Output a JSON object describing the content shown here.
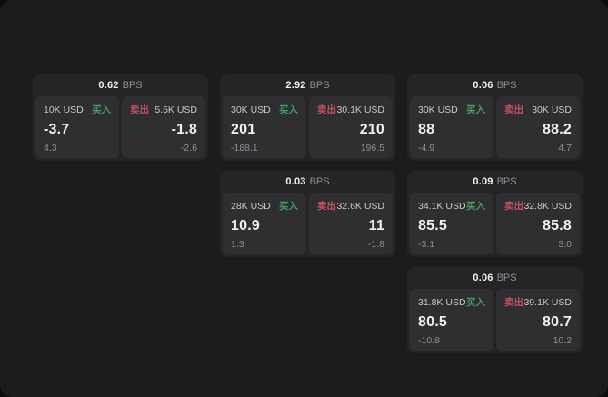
{
  "colors": {
    "page_bg": "#0e0e10",
    "panel_bg": "#1c1c1e",
    "card_bg": "#252527",
    "subpanel_bg": "#2f2f31",
    "buy_green": "#4a9a62",
    "sell_red": "#c44f63",
    "text_strong": "#f2f2f3",
    "text_muted": "#909095"
  },
  "labels": {
    "bps_unit": "BPS",
    "buy": "买入",
    "sell": "卖出"
  },
  "cards": [
    {
      "row": 1,
      "col": 1,
      "bps": "0.62",
      "buy": {
        "amount": "10K USD",
        "value": "-3.7",
        "delta": "4.3"
      },
      "sell": {
        "amount": "5.5K USD",
        "value": "-1.8",
        "delta": "-2.6"
      }
    },
    {
      "row": 1,
      "col": 2,
      "bps": "2.92",
      "buy": {
        "amount": "30K USD",
        "value": "201",
        "delta": "-188.1"
      },
      "sell": {
        "amount": "30.1K USD",
        "value": "210",
        "delta": "196.5"
      }
    },
    {
      "row": 1,
      "col": 3,
      "bps": "0.06",
      "buy": {
        "amount": "30K USD",
        "value": "88",
        "delta": "-4.9"
      },
      "sell": {
        "amount": "30K USD",
        "value": "88.2",
        "delta": "4.7"
      }
    },
    {
      "row": 2,
      "col": 2,
      "bps": "0.03",
      "buy": {
        "amount": "28K USD",
        "value": "10.9",
        "delta": "1.3"
      },
      "sell": {
        "amount": "32.6K USD",
        "value": "11",
        "delta": "-1.8"
      }
    },
    {
      "row": 2,
      "col": 3,
      "bps": "0.09",
      "buy": {
        "amount": "34.1K USD",
        "value": "85.5",
        "delta": "-3.1"
      },
      "sell": {
        "amount": "32.8K USD",
        "value": "85.8",
        "delta": "3.0"
      }
    },
    {
      "row": 3,
      "col": 3,
      "bps": "0.06",
      "buy": {
        "amount": "31.8K USD",
        "value": "80.5",
        "delta": "-10.8"
      },
      "sell": {
        "amount": "39.1K USD",
        "value": "80.7",
        "delta": "10.2"
      }
    }
  ]
}
